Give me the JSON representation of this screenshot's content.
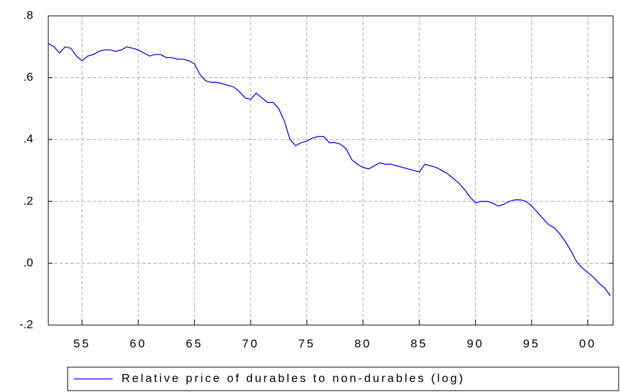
{
  "chart_data": {
    "type": "line",
    "x": [
      1952,
      1952.5,
      1953,
      1953.5,
      1954,
      1954.5,
      1955,
      1955.5,
      1956,
      1956.5,
      1957,
      1957.5,
      1958,
      1958.5,
      1959,
      1959.5,
      1960,
      1960.5,
      1961,
      1961.5,
      1962,
      1962.5,
      1963,
      1963.5,
      1964,
      1964.5,
      1965,
      1965.5,
      1966,
      1966.5,
      1967,
      1967.5,
      1968,
      1968.5,
      1969,
      1969.5,
      1970,
      1970.5,
      1971,
      1971.5,
      1972,
      1972.5,
      1973,
      1973.5,
      1974,
      1974.5,
      1975,
      1975.5,
      1976,
      1976.5,
      1977,
      1977.5,
      1978,
      1978.5,
      1979,
      1979.5,
      1980,
      1980.5,
      1981,
      1981.5,
      1982,
      1982.5,
      1983,
      1983.5,
      1984,
      1984.5,
      1985,
      1985.5,
      1986,
      1986.5,
      1987,
      1987.5,
      1988,
      1988.5,
      1989,
      1989.5,
      1990,
      1990.5,
      1991,
      1991.5,
      1992,
      1992.5,
      1993,
      1993.5,
      1994,
      1994.5,
      1995,
      1995.5,
      1996,
      1996.5,
      1997,
      1997.5,
      1998,
      1998.5,
      1999,
      1999.5,
      2000,
      2000.5,
      2001,
      2001.5,
      2002
    ],
    "series": [
      {
        "name": "Relative price of durables to non-durables (log)",
        "color": "#0000ee",
        "values": [
          0.71,
          0.7,
          0.68,
          0.7,
          0.695,
          0.67,
          0.655,
          0.67,
          0.675,
          0.685,
          0.69,
          0.69,
          0.685,
          0.69,
          0.7,
          0.695,
          0.69,
          0.68,
          0.67,
          0.675,
          0.675,
          0.665,
          0.665,
          0.66,
          0.66,
          0.655,
          0.645,
          0.61,
          0.59,
          0.585,
          0.585,
          0.58,
          0.575,
          0.57,
          0.555,
          0.535,
          0.53,
          0.55,
          0.535,
          0.52,
          0.52,
          0.5,
          0.46,
          0.4,
          0.38,
          0.39,
          0.395,
          0.405,
          0.41,
          0.41,
          0.39,
          0.39,
          0.385,
          0.37,
          0.335,
          0.32,
          0.31,
          0.305,
          0.315,
          0.325,
          0.32,
          0.32,
          0.315,
          0.31,
          0.305,
          0.3,
          0.295,
          0.32,
          0.315,
          0.31,
          0.3,
          0.29,
          0.275,
          0.26,
          0.24,
          0.215,
          0.195,
          0.2,
          0.2,
          0.195,
          0.185,
          0.19,
          0.2,
          0.205,
          0.205,
          0.2,
          0.185,
          0.165,
          0.145,
          0.125,
          0.115,
          0.095,
          0.07,
          0.04,
          0.005,
          -0.015,
          -0.03,
          -0.045,
          -0.065,
          -0.08,
          -0.105
        ]
      }
    ],
    "xlim": [
      1952,
      2002.25
    ],
    "xticks": [
      {
        "value": 1955,
        "label": "55"
      },
      {
        "value": 1960,
        "label": "60"
      },
      {
        "value": 1965,
        "label": "65"
      },
      {
        "value": 1970,
        "label": "70"
      },
      {
        "value": 1975,
        "label": "75"
      },
      {
        "value": 1980,
        "label": "80"
      },
      {
        "value": 1985,
        "label": "85"
      },
      {
        "value": 1990,
        "label": "90"
      },
      {
        "value": 1995,
        "label": "95"
      },
      {
        "value": 2000,
        "label": "00"
      }
    ],
    "ylim": [
      -0.2,
      0.8
    ],
    "yticks": [
      {
        "value": -0.2,
        "label": "-.2"
      },
      {
        "value": 0,
        "label": ".0"
      },
      {
        "value": 0.2,
        "label": ".2"
      },
      {
        "value": 0.4,
        "label": ".4"
      },
      {
        "value": 0.6,
        "label": ".6"
      },
      {
        "value": 0.8,
        "label": ".8"
      }
    ],
    "grid": true
  }
}
